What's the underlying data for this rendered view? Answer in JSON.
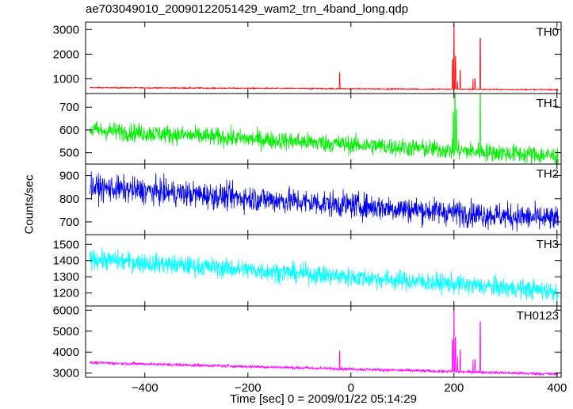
{
  "title": "ae703049010_20090122051429_wam2_trn_4band_long.qdp",
  "xlabel": "Time [sec] 0 = 2009/01/22 05:14:29",
  "ylabel": "Counts/sec",
  "chart_data": {
    "type": "line",
    "title": "ae703049010_20090122051429_wam2_trn_4band_long.qdp",
    "xlabel": "Time [sec] 0 = 2009/01/22 05:14:29",
    "ylabel": "Counts/sec",
    "xlim": [
      -515,
      408
    ],
    "x_ticks": [
      -400,
      -200,
      0,
      200,
      400
    ],
    "x_tick_labels": [
      "−400",
      "−200",
      "0",
      "200",
      "400"
    ],
    "grid": false,
    "panels": [
      {
        "label": "TH0",
        "color": "#ff0000",
        "ylim": [
          400,
          3300
        ],
        "y_ticks": [
          1000,
          2000,
          3000
        ],
        "y_tick_labels": [
          "1000",
          "2000",
          "3000"
        ],
        "baseline_start": 640,
        "baseline_end": 560,
        "noise": 25,
        "spikes": [
          [
            -22,
            1250
          ],
          [
            197,
            1800
          ],
          [
            200,
            3200
          ],
          [
            203,
            1900
          ],
          [
            207,
            900
          ],
          [
            212,
            1350
          ],
          [
            237,
            1000
          ],
          [
            241,
            1000
          ],
          [
            251,
            2650
          ]
        ]
      },
      {
        "label": "TH1",
        "color": "#00ee00",
        "ylim": [
          450,
          760
        ],
        "y_ticks": [
          500,
          600,
          700
        ],
        "y_tick_labels": [
          "500",
          "600",
          "700"
        ],
        "baseline_start": 600,
        "baseline_end": 485,
        "noise": 40,
        "spikes": [
          [
            199,
            680
          ],
          [
            202,
            760
          ],
          [
            205,
            690
          ],
          [
            251,
            760
          ]
        ]
      },
      {
        "label": "TH2",
        "color": "#0000ee",
        "ylim": [
          645,
          950
        ],
        "y_ticks": [
          700,
          800,
          900
        ],
        "y_tick_labels": [
          "700",
          "800",
          "900"
        ],
        "baseline_start": 850,
        "baseline_end": 710,
        "noise": 55,
        "spikes": []
      },
      {
        "label": "TH3",
        "color": "#00ffff",
        "ylim": [
          1120,
          1560
        ],
        "y_ticks": [
          1200,
          1300,
          1400,
          1500
        ],
        "y_tick_labels": [
          "1200",
          "1300",
          "1400",
          "1500"
        ],
        "baseline_start": 1410,
        "baseline_end": 1210,
        "noise": 60,
        "spikes": []
      },
      {
        "label": "TH0123",
        "color": "#ff00ff",
        "ylim": [
          2800,
          6200
        ],
        "y_ticks": [
          3000,
          4000,
          5000,
          6000
        ],
        "y_tick_labels": [
          "3000",
          "4000",
          "5000",
          "6000"
        ],
        "baseline_start": 3500,
        "baseline_end": 2950,
        "noise": 70,
        "spikes": [
          [
            -22,
            4050
          ],
          [
            197,
            4600
          ],
          [
            200,
            6100
          ],
          [
            203,
            4700
          ],
          [
            207,
            3800
          ],
          [
            212,
            4100
          ],
          [
            237,
            3650
          ],
          [
            241,
            3650
          ],
          [
            251,
            5450
          ]
        ]
      }
    ]
  }
}
